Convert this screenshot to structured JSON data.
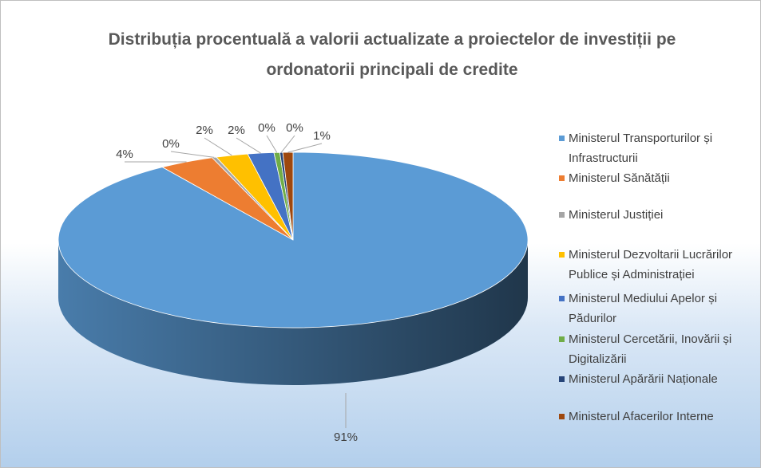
{
  "chart_data": {
    "type": "pie",
    "title": "Distribuția procentuală a valorii actualizate a proiectelor de investiții pe ordonatorii principali de credite",
    "categories": [
      "Ministerul Transporturilor și Infrastructurii",
      "Ministerul Sănătății",
      "Ministerul Justiției",
      "Ministerul Dezvoltarii Lucrărilor Publice și Administrației",
      "Ministerul Mediului Apelor și Pădurilor",
      "Ministerul Cercetării, Inovării și Digitalizării",
      "Ministerul Apărării Naționale",
      "Ministerul Afacerilor Interne"
    ],
    "values": [
      90.6,
      3.8,
      0.3,
      2.2,
      1.8,
      0.4,
      0.2,
      0.7
    ],
    "value_labels": [
      "91%",
      "4%",
      "0%",
      "2%",
      "2%",
      "0%",
      "0%",
      "1%"
    ],
    "colors": [
      "#5b9bd5",
      "#ed7d31",
      "#a5a5a5",
      "#ffc000",
      "#4472c4",
      "#70ad47",
      "#264478",
      "#9e480e"
    ],
    "legend": "right"
  }
}
